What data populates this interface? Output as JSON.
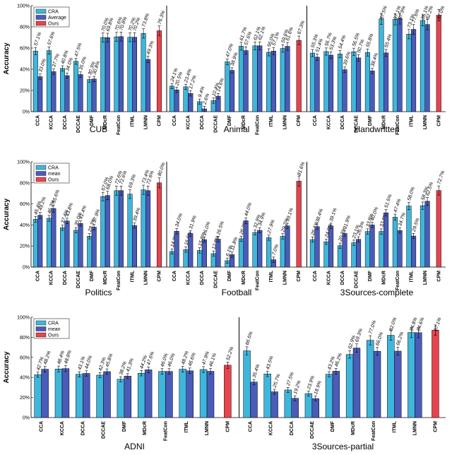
{
  "colors": {
    "cra": "#3fb6dc",
    "mid": "#4a5bb8",
    "ours": "#e8444e"
  },
  "chart_data": [
    {
      "type": "bar",
      "ylabel": "Accuracy",
      "ylim": [
        0,
        100
      ],
      "yticks": [
        "0%",
        "20%",
        "40%",
        "60%",
        "80%",
        "100%"
      ],
      "legend": [
        "CRA",
        "Average",
        "Ours"
      ],
      "legend_position": "top-left",
      "categories": [
        "CCA",
        "KCCA",
        "DCCA",
        "DCCAE",
        "DMF",
        "MDcR",
        "FeatCon",
        "ITML",
        "LMNN",
        "CPM"
      ],
      "datasets": [
        {
          "name": "CUB",
          "cra": [
            57.1,
            57.6,
            40.8,
            47.5,
            30.3,
            70.0,
            70.6,
            70.2,
            73.8,
            null
          ],
          "mid": [
            33.0,
            37.7,
            34.0,
            35.0,
            30.8,
            69.8,
            70.8,
            70.2,
            49.3,
            null
          ],
          "cra_labels": [
            "57.1%",
            "57.6%",
            "40.8%",
            "47.5%",
            "30.3%",
            "70.0%",
            "70.6%",
            "70.2%",
            "73.8%",
            ""
          ],
          "mid_labels": [
            "33.0%",
            "37.7%",
            "34.0%",
            "35.0%",
            "30.8%",
            "69.8%",
            "70.8%",
            "70.2%",
            "49.3%",
            ""
          ],
          "ours": 76.3,
          "ours_label": "76.3%"
        },
        {
          "name": "Animal",
          "cra": [
            24.1,
            23.4,
            9.4,
            10.4,
            47.0,
            61.7,
            62.1,
            56.0,
            59.6,
            null
          ],
          "mid": [
            20.5,
            17.2,
            2.6,
            14.6,
            38.9,
            57.6,
            62.1,
            57.1,
            61.6,
            null
          ],
          "cra_labels": [
            "24.1%",
            "23.4%",
            "9.4%",
            "10.4%",
            "47.0%",
            "61.7%",
            "62.1%",
            "56.0%",
            "59.6%",
            ""
          ],
          "mid_labels": [
            "20.5%",
            "17.2%",
            "2.6%",
            "14.6%",
            "38.9%",
            "57.6%",
            "62.1%",
            "57.1%",
            "61.6%",
            ""
          ],
          "ours": 67.3,
          "ours_label": "67.3%"
        },
        {
          "name": "Handwritten",
          "cra": [
            55.3,
            56.7,
            54.4,
            56.5,
            55.8,
            87.5,
            87.1,
            73.1,
            86.1,
            null
          ],
          "mid": [
            51.4,
            53.3,
            39.6,
            50.7,
            38.4,
            55.4,
            87.9,
            77.6,
            82.2,
            null
          ],
          "cra_labels": [
            "55.3%",
            "56.7%",
            "54.4%",
            "56.5%",
            "55.8%",
            "87.5%",
            "87.1%",
            "73.1%",
            "86.1%",
            ""
          ],
          "mid_labels": [
            "51.4%",
            "53.3%",
            "39.6%",
            "50.7%",
            "38.4%",
            "55.4%",
            "87.9%",
            "77.6%",
            "82.2%",
            ""
          ],
          "ours": 91.0,
          "ours_label": "91.0%"
        }
      ]
    },
    {
      "type": "bar",
      "ylabel": "Accuracy",
      "ylim": [
        0,
        100
      ],
      "yticks": [
        "0%",
        "20%",
        "40%",
        "60%",
        "80%",
        "100%"
      ],
      "legend": [
        "CRA",
        "mean",
        "Ours"
      ],
      "legend_position": "top-left",
      "categories": [
        "CCA",
        "KCCA",
        "DCCA",
        "DCCAE",
        "DMF",
        "MDcR",
        "FeatCon",
        "ITML",
        "LMNN",
        "CPM"
      ],
      "datasets": [
        {
          "name": "Politics",
          "cra": [
            45.4,
            46.3,
            37.4,
            35.0,
            29.3,
            67.0,
            72.6,
            69.3,
            73.4,
            null
          ],
          "mid": [
            49.2,
            55.6,
            43.8,
            41.4,
            37.9,
            68.0,
            72.6,
            39.4,
            72.6,
            null
          ],
          "cra_labels": [
            "45.4%",
            "46.3%",
            "37.4%",
            "35.0%",
            "29.3%",
            "67.0%",
            "72.6%",
            "69.3%",
            "73.4%",
            ""
          ],
          "mid_labels": [
            "49.2%",
            "55.6%",
            "43.8%",
            "41.4%",
            "37.9%",
            "68.0%",
            "72.6%",
            "39.4%",
            "72.6%",
            ""
          ],
          "ours": 80.0,
          "ours_label": "80.0%"
        },
        {
          "name": "Football",
          "cra": [
            14.8,
            16.6,
            15.8,
            12.8,
            6.1,
            26.9,
            32.9,
            27.9,
            29.2,
            null
          ],
          "mid": [
            34.0,
            31.9,
            26.0,
            26.5,
            11.8,
            44.0,
            34.9,
            7.0,
            39.1,
            null
          ],
          "cra_labels": [
            "14.8%",
            "16.6%",
            "15.8%",
            "12.8%",
            "6.1%",
            "26.9%",
            "32.9%",
            "27.9%",
            "29.2%",
            ""
          ],
          "mid_labels": [
            "34.0%",
            "31.9%",
            "26.0%",
            "26.5%",
            "11.8%",
            "44.0%",
            "34.9%",
            "7.0%",
            "39.1%",
            ""
          ],
          "ours": 81.6,
          "ours_label": "81.6%"
        },
        {
          "name": "3Sources-complete",
          "cra": [
            26.1,
            24.0,
            20.3,
            23.1,
            33.8,
            33.8,
            47.4,
            58.0,
            58.3,
            null
          ],
          "mid": [
            38.4,
            39.1,
            31.9,
            26.3,
            40.0,
            51.5,
            34.7,
            29.5,
            62.5,
            null
          ],
          "cra_labels": [
            "26.1%",
            "24.0%",
            "20.3%",
            "23.1%",
            "33.8%",
            "33.8%",
            "47.4%",
            "58.0%",
            "58.3%",
            ""
          ],
          "mid_labels": [
            "38.4%",
            "39.1%",
            "31.9%",
            "26.3%",
            "40.0%",
            "51.5%",
            "34.7%",
            "29.5%",
            "62.5%",
            ""
          ],
          "ours": 72.7,
          "ours_label": "72.7%"
        }
      ]
    },
    {
      "type": "bar",
      "ylabel": "Accuracy",
      "ylim": [
        0,
        100
      ],
      "yticks": [
        "0%",
        "20%",
        "40%",
        "60%",
        "80%",
        "100%"
      ],
      "legend": [
        "CRA",
        "mean",
        "Ours"
      ],
      "legend_position": "top-left",
      "categories": [
        "CCA",
        "KCCA",
        "DCCA",
        "DCCAE",
        "DMF",
        "MDcR",
        "FeatCon",
        "ITML",
        "LMNN",
        "CPM"
      ],
      "datasets": [
        {
          "name": "ADNI",
          "cra": [
            42.7,
            48.4,
            43.1,
            42.3,
            38.2,
            44.2,
            46.0,
            48.2,
            47.9,
            null
          ],
          "mid": [
            48.2,
            48.8,
            44.0,
            45.8,
            41.3,
            47.6,
            46.0,
            46.6,
            46.1,
            null
          ],
          "cra_labels": [
            "42.7%",
            "48.4%",
            "43.1%",
            "42.3%",
            "38.2%",
            "44.2%",
            "46.0%",
            "48.2%",
            "47.9%",
            ""
          ],
          "mid_labels": [
            "48.2%",
            "48.8%",
            "44.0%",
            "45.8%",
            "41.3%",
            "47.6%",
            "46.0%",
            "46.6%",
            "46.1%",
            ""
          ],
          "ours": 52.2,
          "ours_label": "52.2%"
        },
        {
          "name": "3Sources-partial",
          "cra": [
            66.5,
            43.5,
            27.5,
            23.9,
            43.2,
            62.9,
            77.0,
            82.0,
            84.8,
            null
          ],
          "mid": [
            35.4,
            25.7,
            19.2,
            18.9,
            46.2,
            69.3,
            66.0,
            66.2,
            84.6,
            null
          ],
          "cra_labels": [
            "66.5%",
            "43.5%",
            "27.5%",
            "23.9%",
            "43.2%",
            "62.9%",
            "77.0%",
            "82.0%",
            "84.8%",
            ""
          ],
          "mid_labels": [
            "35.4%",
            "25.7%",
            "19.2%",
            "18.9%",
            "46.2%",
            "69.3%",
            "66.0%",
            "66.2%",
            "84.6%",
            ""
          ],
          "ours": 87.1,
          "ours_label": "87.1%"
        }
      ]
    }
  ]
}
